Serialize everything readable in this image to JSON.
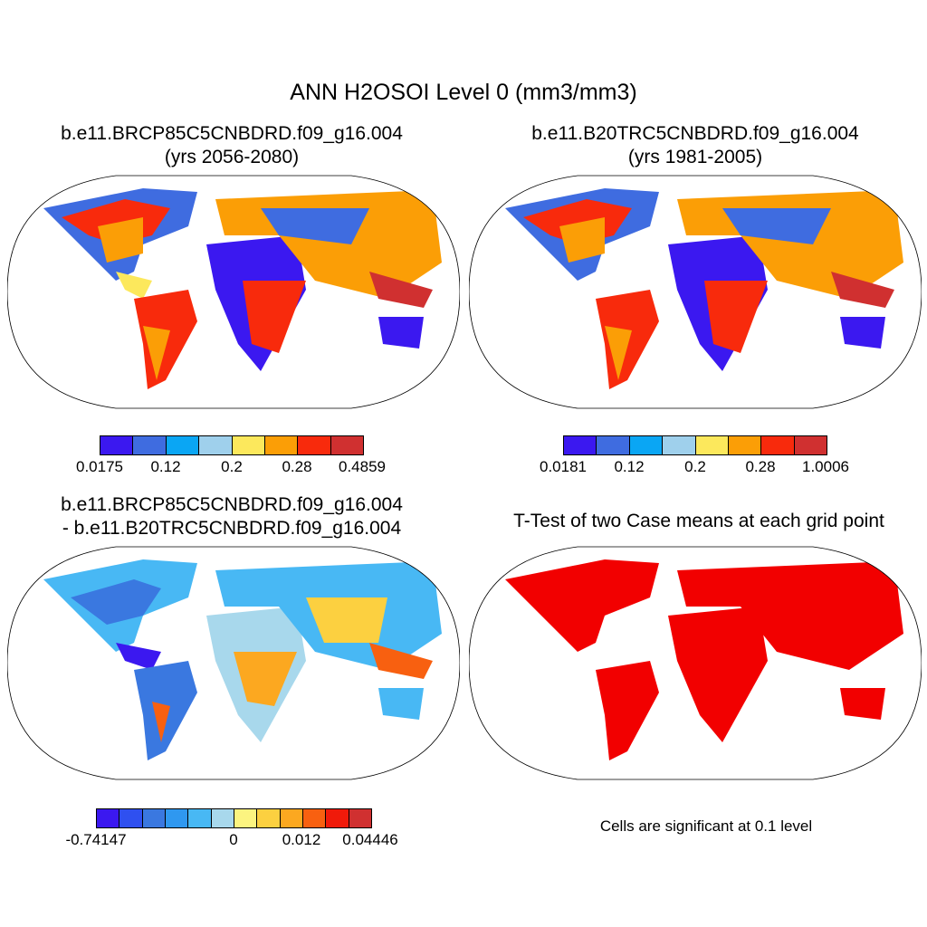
{
  "main_title": "ANN H2OSOI Level 0 (mm3/mm3)",
  "panels": [
    {
      "id": "p1",
      "title_line1": "b.e11.BRCP85C5CNBDRD.f09_g16.004",
      "title_line2": "(yrs 2056-2080)",
      "colorbar": {
        "colors": [
          "#3b18f0",
          "#3f6ce0",
          "#0aa6f4",
          "#9fd0ec",
          "#fce85c",
          "#fb9e06",
          "#f82a0c",
          "#d03030"
        ],
        "labels": [
          "0.0175",
          "0.12",
          "0.2",
          "0.28",
          "0.4859"
        ]
      }
    },
    {
      "id": "p2",
      "title_line1": "b.e11.B20TRC5CNBDRD.f09_g16.004",
      "title_line2": "(yrs 1981-2005)",
      "colorbar": {
        "colors": [
          "#3b18f0",
          "#3f6ce0",
          "#0aa6f4",
          "#9fd0ec",
          "#fce85c",
          "#fb9e06",
          "#f82a0c",
          "#d03030"
        ],
        "labels": [
          "0.0181",
          "0.12",
          "0.2",
          "0.28",
          "1.0006"
        ]
      }
    },
    {
      "id": "p3",
      "title_line1": "b.e11.BRCP85C5CNBDRD.f09_g16.004",
      "title_line2": "- b.e11.B20TRC5CNBDRD.f09_g16.004",
      "colorbar": {
        "colors": [
          "#3b18f0",
          "#2f50f0",
          "#3a78e0",
          "#2f98f0",
          "#48b8f4",
          "#a8d8ec",
          "#fcf480",
          "#fcd040",
          "#fca820",
          "#f86010",
          "#f01a0a",
          "#d03030"
        ],
        "labels": [
          "-0.74147",
          "0",
          "0.012",
          "0.04446"
        ]
      }
    },
    {
      "id": "p4",
      "title_line1": "T-Test of two Case means at each grid point",
      "note": "Cells are significant at 0.1 level"
    }
  ]
}
